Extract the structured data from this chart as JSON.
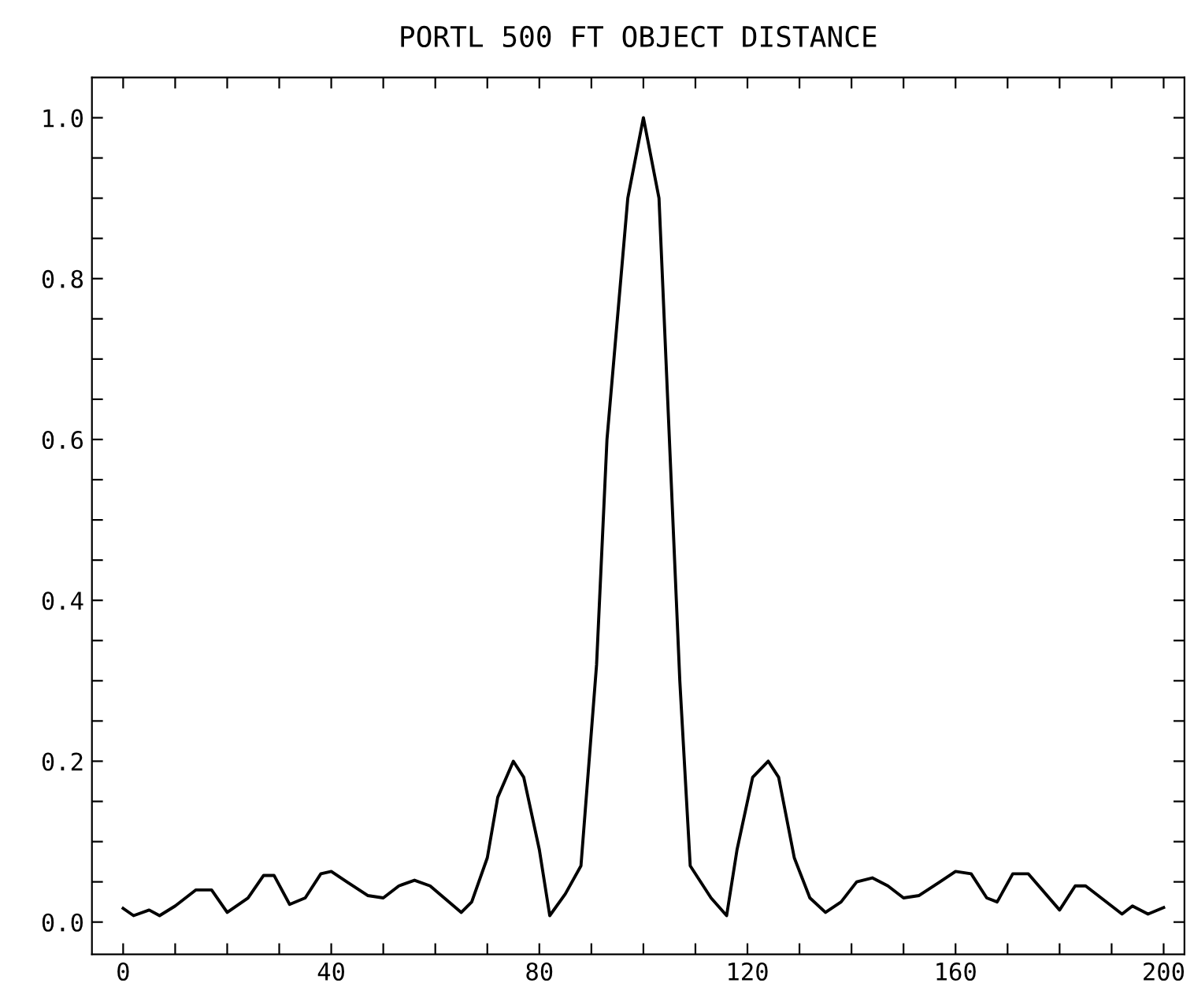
{
  "chart_data": {
    "type": "line",
    "title": "PORTL 500 FT OBJECT DISTANCE",
    "x": [
      0,
      2,
      5,
      7,
      10,
      14,
      17,
      20,
      24,
      27,
      29,
      32,
      35,
      38,
      40,
      43,
      47,
      50,
      53,
      56,
      59,
      65,
      67,
      70,
      72,
      75,
      77,
      80,
      82,
      85,
      88,
      91,
      93,
      97,
      100,
      103,
      105,
      107,
      109,
      113,
      116,
      118,
      121,
      124,
      126,
      129,
      132,
      135,
      138,
      141,
      144,
      147,
      150,
      153,
      157,
      160,
      163,
      166,
      168,
      171,
      174,
      180,
      183,
      185,
      192,
      194,
      197,
      200
    ],
    "series": [
      {
        "color": "#000000",
        "values": [
          0.017,
          0.008,
          0.015,
          0.008,
          0.02,
          0.04,
          0.04,
          0.012,
          0.03,
          0.058,
          0.058,
          0.022,
          0.03,
          0.06,
          0.063,
          0.05,
          0.033,
          0.03,
          0.045,
          0.052,
          0.045,
          0.012,
          0.025,
          0.08,
          0.155,
          0.2,
          0.18,
          0.09,
          0.008,
          0.035,
          0.07,
          0.32,
          0.6,
          0.9,
          1.0,
          0.9,
          0.6,
          0.3,
          0.07,
          0.03,
          0.008,
          0.09,
          0.18,
          0.2,
          0.18,
          0.08,
          0.03,
          0.012,
          0.025,
          0.05,
          0.055,
          0.045,
          0.03,
          0.033,
          0.05,
          0.063,
          0.06,
          0.03,
          0.025,
          0.06,
          0.06,
          0.015,
          0.045,
          0.045,
          0.01,
          0.02,
          0.01,
          0.018
        ]
      }
    ],
    "xlim": [
      -6,
      204
    ],
    "ylim": [
      -0.04,
      1.05
    ],
    "xticks": [
      0,
      {
        "value": 10,
        "label": null
      },
      {
        "value": 20,
        "label": null
      },
      {
        "value": 30,
        "label": null
      },
      40,
      {
        "value": 50,
        "label": null
      },
      {
        "value": 60,
        "label": null
      },
      {
        "value": 70,
        "label": null
      },
      80,
      {
        "value": 90,
        "label": null
      },
      {
        "value": 100,
        "label": null
      },
      {
        "value": 110,
        "label": null
      },
      120,
      {
        "value": 130,
        "label": null
      },
      {
        "value": 140,
        "label": null
      },
      {
        "value": 150,
        "label": null
      },
      160,
      {
        "value": 170,
        "label": null
      },
      {
        "value": 180,
        "label": null
      },
      {
        "value": 190,
        "label": null
      },
      200
    ],
    "yticks": [
      {
        "value": 0,
        "label": "0.0"
      },
      {
        "value": 0.05,
        "label": null
      },
      {
        "value": 0.1,
        "label": null
      },
      {
        "value": 0.15,
        "label": null
      },
      {
        "value": 0.2,
        "label": "0.2"
      },
      {
        "value": 0.25,
        "label": null
      },
      {
        "value": 0.3,
        "label": null
      },
      {
        "value": 0.35,
        "label": null
      },
      {
        "value": 0.4,
        "label": "0.4"
      },
      {
        "value": 0.45,
        "label": null
      },
      {
        "value": 0.5,
        "label": null
      },
      {
        "value": 0.55,
        "label": null
      },
      {
        "value": 0.6,
        "label": "0.6"
      },
      {
        "value": 0.65,
        "label": null
      },
      {
        "value": 0.7,
        "label": null
      },
      {
        "value": 0.75,
        "label": null
      },
      {
        "value": 0.8,
        "label": "0.8"
      },
      {
        "value": 0.85,
        "label": null
      },
      {
        "value": 0.9,
        "label": null
      },
      {
        "value": 0.95,
        "label": null
      },
      {
        "value": 1.0,
        "label": "1.0"
      }
    ],
    "grid": false,
    "marker": "none",
    "line_style": "solid"
  }
}
